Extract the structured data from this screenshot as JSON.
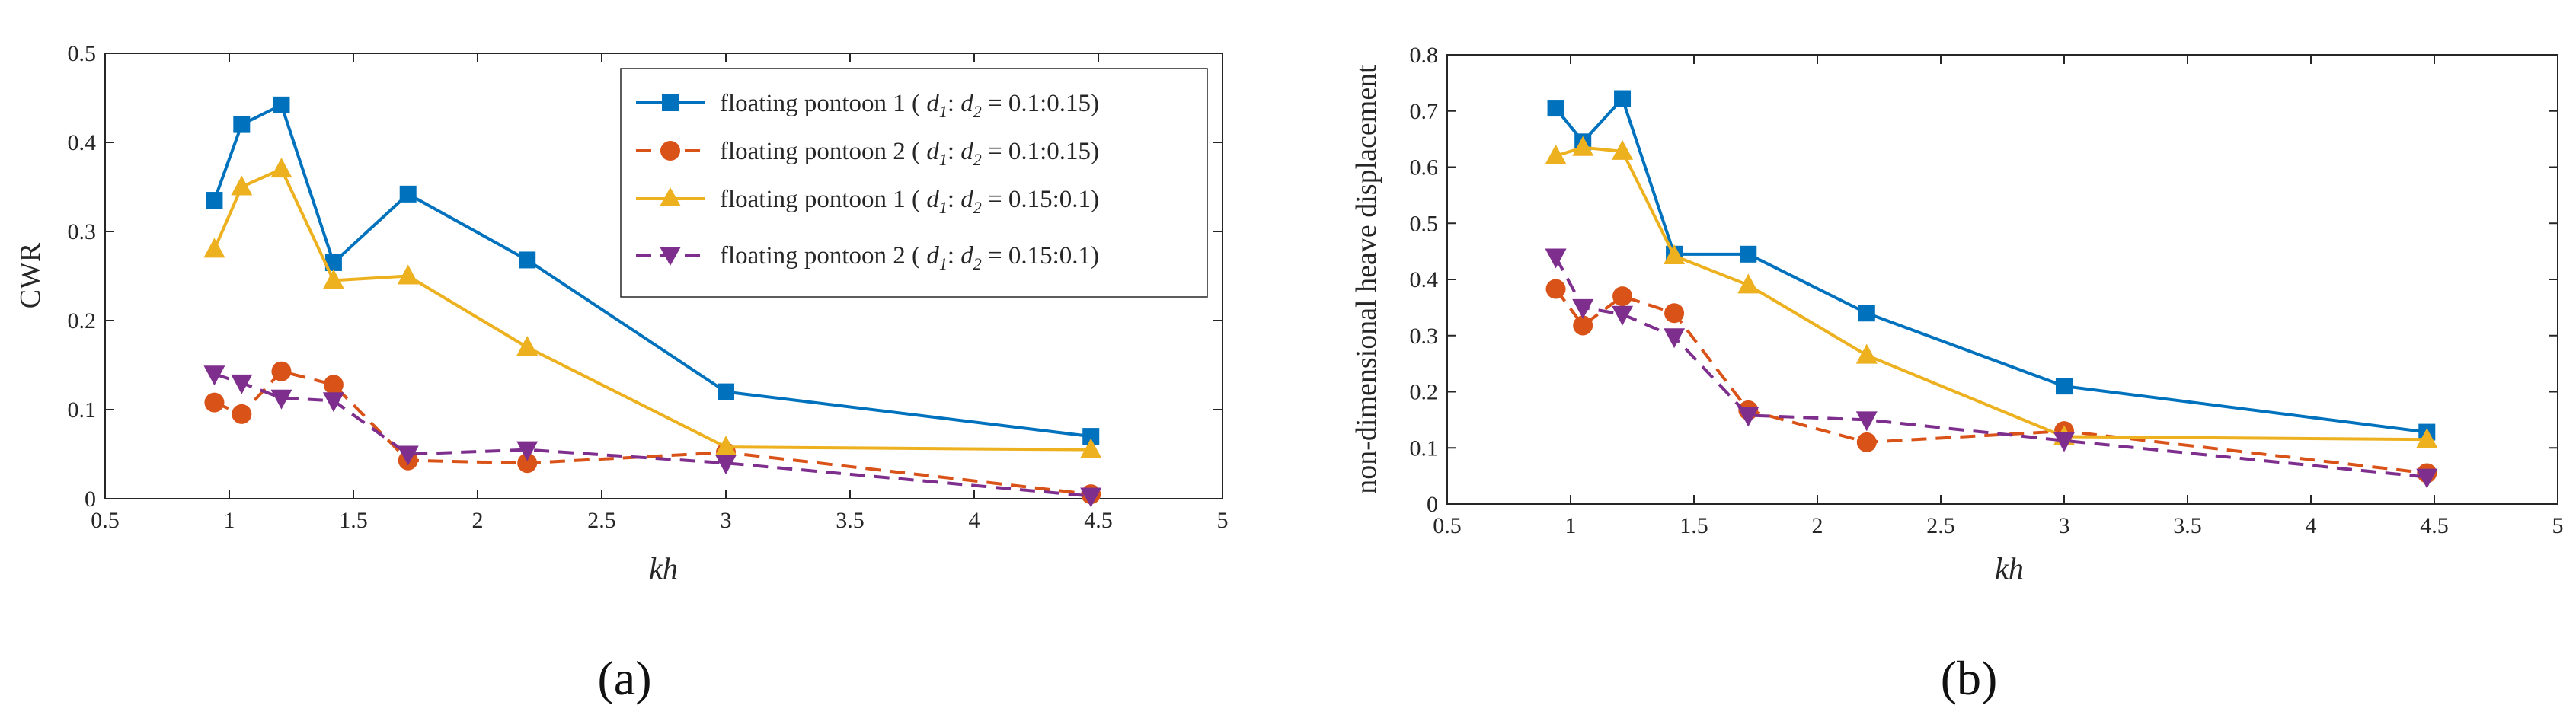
{
  "chart_data": [
    {
      "type": "line",
      "title": "",
      "panel_label": "(a)",
      "xlabel": "kh",
      "ylabel": "CWR",
      "xlim": [
        0.5,
        5
      ],
      "ylim": [
        0,
        0.5
      ],
      "xticks": [
        0.5,
        1,
        1.5,
        2,
        2.5,
        3,
        3.5,
        4,
        4.5,
        5
      ],
      "xtick_labels": [
        "0.5",
        "1",
        "1.5",
        "2",
        "2.5",
        "3",
        "3.5",
        "4",
        "4.5",
        "5"
      ],
      "yticks": [
        0,
        0.1,
        0.2,
        0.3,
        0.4,
        0.5
      ],
      "ytick_labels": [
        "0",
        "0.1",
        "0.2",
        "0.3",
        "0.4",
        "0.5"
      ],
      "legend_position": "top-right",
      "series": [
        {
          "name": "floating pontoon 1 ( d1: d2 = 0.1:0.15)",
          "legend_prefix": "floating pontoon 1 (",
          "ratio": "= 0.1:0.15)",
          "color": "#0072BD",
          "marker": "square",
          "dash": "solid",
          "x": [
            0.94,
            1.05,
            1.21,
            1.42,
            1.72,
            2.2,
            3.0,
            4.47
          ],
          "y": [
            0.335,
            0.42,
            0.442,
            0.265,
            0.342,
            0.268,
            0.12,
            0.07
          ]
        },
        {
          "name": "floating pontoon 2 ( d1: d2 = 0.1:0.15)",
          "legend_prefix": "floating pontoon 2 (",
          "ratio": "= 0.1:0.15)",
          "color": "#D95319",
          "marker": "circle",
          "dash": "dashed",
          "x": [
            0.94,
            1.05,
            1.21,
            1.42,
            1.72,
            2.2,
            3.0,
            4.47
          ],
          "y": [
            0.108,
            0.095,
            0.143,
            0.128,
            0.043,
            0.04,
            0.052,
            0.005
          ]
        },
        {
          "name": "floating pontoon 1 ( d1: d2 = 0.15:0.1)",
          "legend_prefix": "floating pontoon 1 (",
          "ratio": "= 0.15:0.1)",
          "color": "#EDB120",
          "marker": "triangle-up",
          "dash": "solid",
          "x": [
            0.94,
            1.05,
            1.21,
            1.42,
            1.72,
            2.2,
            3.0,
            4.47
          ],
          "y": [
            0.28,
            0.35,
            0.37,
            0.245,
            0.25,
            0.17,
            0.058,
            0.055
          ]
        },
        {
          "name": "floating pontoon 2 ( d1: d2 = 0.15:0.1)",
          "legend_prefix": "floating pontoon 2 (",
          "ratio": "= 0.15:0.1)",
          "color": "#7E2F8E",
          "marker": "triangle-down",
          "dash": "dashed",
          "x": [
            0.94,
            1.05,
            1.21,
            1.42,
            1.72,
            2.2,
            3.0,
            4.47
          ],
          "y": [
            0.14,
            0.13,
            0.113,
            0.11,
            0.05,
            0.055,
            0.04,
            0.003
          ]
        }
      ]
    },
    {
      "type": "line",
      "title": "",
      "panel_label": "(b)",
      "xlabel": "kh",
      "ylabel": "non-dimensional heave displacement",
      "xlim": [
        0.5,
        5
      ],
      "ylim": [
        0,
        0.8
      ],
      "xticks": [
        0.5,
        1,
        1.5,
        2,
        2.5,
        3,
        3.5,
        4,
        4.5,
        5
      ],
      "xtick_labels": [
        "0.5",
        "1",
        "1.5",
        "2",
        "2.5",
        "3",
        "3.5",
        "4",
        "4.5",
        "5"
      ],
      "yticks": [
        0,
        0.1,
        0.2,
        0.3,
        0.4,
        0.5,
        0.6,
        0.7,
        0.8
      ],
      "ytick_labels": [
        "0",
        "0.1",
        "0.2",
        "0.3",
        "0.4",
        "0.5",
        "0.6",
        "0.7",
        "0.8"
      ],
      "series": [
        {
          "name": "floating pontoon 1 ( d1: d2 = 0.1:0.15)",
          "color": "#0072BD",
          "marker": "square",
          "dash": "solid",
          "x": [
            0.94,
            1.05,
            1.21,
            1.42,
            1.72,
            2.2,
            3.0,
            4.47
          ],
          "y": [
            0.705,
            0.645,
            0.722,
            0.445,
            0.445,
            0.34,
            0.21,
            0.128
          ]
        },
        {
          "name": "floating pontoon 2 ( d1: d2 = 0.1:0.15)",
          "color": "#D95319",
          "marker": "circle",
          "dash": "dashed",
          "x": [
            0.94,
            1.05,
            1.21,
            1.42,
            1.72,
            2.2,
            3.0,
            4.47
          ],
          "y": [
            0.383,
            0.318,
            0.37,
            0.34,
            0.167,
            0.11,
            0.13,
            0.055
          ]
        },
        {
          "name": "floating pontoon 1 ( d1: d2 = 0.15:0.1)",
          "color": "#EDB120",
          "marker": "triangle-up",
          "dash": "solid",
          "x": [
            0.94,
            1.05,
            1.21,
            1.42,
            1.72,
            2.2,
            3.0,
            4.47
          ],
          "y": [
            0.62,
            0.635,
            0.628,
            0.442,
            0.39,
            0.265,
            0.12,
            0.115
          ]
        },
        {
          "name": "floating pontoon 2 ( d1: d2 = 0.15:0.1)",
          "color": "#7E2F8E",
          "marker": "triangle-down",
          "dash": "dashed",
          "x": [
            0.94,
            1.05,
            1.21,
            1.42,
            1.72,
            2.2,
            3.0,
            4.47
          ],
          "y": [
            0.44,
            0.35,
            0.338,
            0.298,
            0.158,
            0.15,
            0.113,
            0.048
          ]
        }
      ]
    }
  ]
}
